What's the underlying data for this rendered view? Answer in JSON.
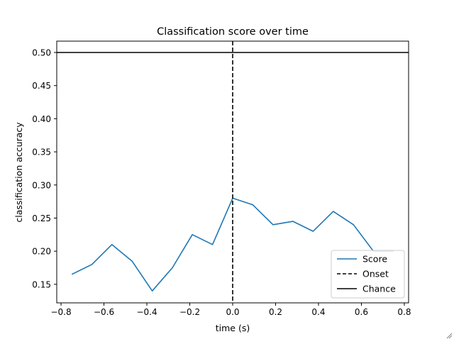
{
  "chart_data": {
    "type": "line",
    "title": "Classification score over time",
    "xlabel": "time (s)",
    "ylabel": "classification accuracy",
    "xlim": [
      -0.82,
      0.82
    ],
    "ylim": [
      0.122,
      0.5
    ],
    "xticks": [
      -0.8,
      -0.6,
      -0.4,
      -0.2,
      0.0,
      0.2,
      0.4,
      0.6,
      0.8
    ],
    "xtick_labels": [
      "−0.8",
      "−0.6",
      "−0.4",
      "−0.2",
      "0.0",
      "0.2",
      "0.4",
      "0.6",
      "0.8"
    ],
    "yticks": [
      0.15,
      0.2,
      0.25,
      0.3,
      0.35,
      0.4,
      0.45,
      0.5
    ],
    "ytick_labels": [
      "0.15",
      "0.20",
      "0.25",
      "0.30",
      "0.35",
      "0.40",
      "0.45",
      "0.50"
    ],
    "grid": false,
    "legend_position": "lower-right",
    "series": [
      {
        "name": "Score",
        "color": "#1f77b4",
        "style": "solid",
        "x": [
          -0.75,
          -0.656,
          -0.563,
          -0.469,
          -0.375,
          -0.281,
          -0.188,
          -0.094,
          0.0,
          0.094,
          0.188,
          0.281,
          0.375,
          0.469,
          0.563,
          0.656,
          0.75
        ],
        "y": [
          0.165,
          0.18,
          0.21,
          0.185,
          0.14,
          0.175,
          0.225,
          0.21,
          0.28,
          0.27,
          0.24,
          0.245,
          0.23,
          0.26,
          0.24,
          0.2,
          0.2
        ]
      }
    ],
    "reference_lines": [
      {
        "name": "Onset",
        "orientation": "vertical",
        "value": 0.0,
        "color": "#000000",
        "style": "dashed"
      },
      {
        "name": "Chance",
        "orientation": "horizontal",
        "value": 0.5,
        "color": "#000000",
        "style": "solid"
      }
    ]
  }
}
